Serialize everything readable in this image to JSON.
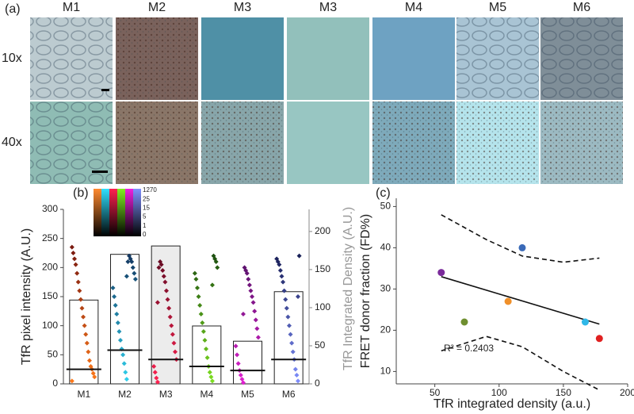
{
  "panel_a": {
    "label": "(a)",
    "columns": [
      "M1",
      "M2",
      "M3",
      "M3",
      "M4",
      "M5",
      "M6"
    ],
    "rows": [
      "10x",
      "40x"
    ]
  },
  "chart_data": [
    {
      "type": "bar",
      "label": "(b)",
      "categories": [
        "M1",
        "M2",
        "M3",
        "M4",
        "M5",
        "M6"
      ],
      "values": [
        110,
        170,
        181,
        76,
        56,
        121
      ],
      "axis": "y2",
      "medians": [
        25,
        58,
        42,
        30,
        23,
        42
      ],
      "points": [
        [
          5,
          12,
          18,
          25,
          30,
          40,
          55,
          70,
          85,
          100,
          115,
          130,
          145,
          160,
          175,
          190,
          205,
          215,
          225,
          235
        ],
        [
          8,
          20,
          35,
          50,
          60,
          75,
          90,
          105,
          120,
          135,
          150,
          165,
          180,
          190,
          200,
          210,
          215,
          220,
          210,
          185
        ],
        [
          3,
          10,
          20,
          30,
          42,
          55,
          70,
          85,
          100,
          115,
          130,
          145,
          160,
          175,
          185,
          195,
          205,
          210,
          200,
          140
        ],
        [
          5,
          12,
          20,
          30,
          45,
          60,
          75,
          90,
          105,
          120,
          135,
          150,
          165,
          180,
          190,
          200,
          210,
          215,
          220,
          170
        ],
        [
          2,
          8,
          15,
          23,
          35,
          50,
          65,
          80,
          95,
          110,
          125,
          140,
          150,
          160,
          170,
          180,
          190,
          195,
          200,
          120
        ],
        [
          5,
          15,
          25,
          42,
          55,
          70,
          85,
          100,
          115,
          130,
          145,
          160,
          175,
          185,
          195,
          205,
          210,
          215,
          220,
          150
        ]
      ],
      "point_colors": [
        [
          "#ff7a1a",
          "#7a1a10"
        ],
        [
          "#2fd4f0",
          "#12305a"
        ],
        [
          "#ff2050",
          "#5a0a20"
        ],
        [
          "#7ee020",
          "#1a4a10"
        ],
        [
          "#e020d0",
          "#4a1060"
        ],
        [
          "#8090ff",
          "#141a50"
        ]
      ],
      "ylim": [
        0,
        300
      ],
      "yticks": [
        0,
        50,
        100,
        150,
        200,
        250,
        300
      ],
      "y2lim": [
        0,
        229
      ],
      "y2ticks": [
        0,
        50,
        100,
        150,
        200
      ],
      "ylabel": "TfR pixel intensity (A.U.)",
      "y2label": "TfR Integrated Density (A.U.)",
      "colorbar_labels": [
        "1270",
        "25",
        "15",
        "5",
        "1",
        "0"
      ]
    },
    {
      "type": "scatter",
      "label": "(c)",
      "x": [
        55,
        73,
        107,
        118,
        167,
        178
      ],
      "y": [
        34,
        22,
        27,
        40,
        22,
        18
      ],
      "colors": [
        "#7a2a9a",
        "#6f8f30",
        "#f0902a",
        "#3a6ab8",
        "#30b8e8",
        "#e02020"
      ],
      "xlim": [
        20,
        200
      ],
      "xticks": [
        50,
        100,
        150,
        200
      ],
      "ylim": [
        7,
        52
      ],
      "yticks": [
        10,
        20,
        30,
        40,
        50
      ],
      "xlabel": "TfR integrated density (a.u.)",
      "ylabel": "FRET donor fraction (FD%)",
      "annotation": "R² = 0.2403",
      "fit": {
        "x": [
          55,
          178
        ],
        "y": [
          33,
          21.5
        ]
      },
      "band_upper": {
        "x": [
          55,
          90,
          118,
          150,
          178
        ],
        "y": [
          48,
          42,
          38,
          36.5,
          37.5
        ]
      },
      "band_lower": {
        "x": [
          55,
          90,
          118,
          150,
          178
        ],
        "y": [
          15,
          18.5,
          16,
          10,
          5.5
        ]
      }
    }
  ]
}
